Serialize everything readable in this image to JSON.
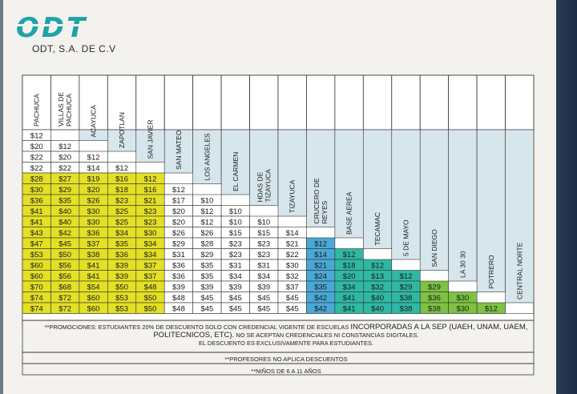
{
  "company": "ODT, S.A. DE C.V",
  "logo_text": "ODT",
  "colors": {
    "logo": "#1fa3a9",
    "yellow": "#e3e026",
    "blue": "#4aa8d6",
    "teal": "#2fb8a4",
    "green": "#7dc242",
    "white": "#ffffff",
    "header": "#d7e6ec"
  },
  "stops": [
    "PACHUCA",
    "VILLAS DE PACHUCA",
    "ACAYUCA",
    "ZAPOTLAN",
    "SAN JAVIER",
    "SAN MATEO",
    "LOS ANGELES",
    "EL CARMEN",
    "HDAS DE TIZAYUCA",
    "TIZAYUCA",
    "CRUCERO DE REYES",
    "BASE AEREA",
    "TECAMAC",
    "5 DE MAYO",
    "SAN DIEGO",
    "LA 30 30",
    "POTRERO",
    "CENTRAL NORTE"
  ],
  "fares": [
    [
      "$12"
    ],
    [
      "$20",
      "$12"
    ],
    [
      "$22",
      "$20",
      "$12"
    ],
    [
      "$22",
      "$22",
      "$14",
      "$12"
    ],
    [
      "$28",
      "$27",
      "$19",
      "$16",
      "$12"
    ],
    [
      "$30",
      "$29",
      "$20",
      "$18",
      "$16",
      "$12"
    ],
    [
      "$36",
      "$35",
      "$26",
      "$23",
      "$21",
      "$17",
      "$10"
    ],
    [
      "$41",
      "$40",
      "$30",
      "$25",
      "$23",
      "$20",
      "$12",
      "$10"
    ],
    [
      "$41",
      "$40",
      "$30",
      "$25",
      "$23",
      "$20",
      "$12",
      "$10",
      "$10"
    ],
    [
      "$43",
      "$42",
      "$36",
      "$34",
      "$30",
      "$26",
      "$26",
      "$15",
      "$15",
      "$14"
    ],
    [
      "$47",
      "$45",
      "$37",
      "$35",
      "$34",
      "$29",
      "$28",
      "$23",
      "$23",
      "$21",
      "$12"
    ],
    [
      "$53",
      "$50",
      "$38",
      "$36",
      "$34",
      "$31",
      "$29",
      "$23",
      "$23",
      "$22",
      "$14",
      "$12"
    ],
    [
      "$60",
      "$56",
      "$41",
      "$39",
      "$37",
      "$36",
      "$35",
      "$31",
      "$31",
      "$30",
      "$21",
      "$18",
      "$12"
    ],
    [
      "$60",
      "$56",
      "$41",
      "$39",
      "$37",
      "$36",
      "$35",
      "$34",
      "$34",
      "$32",
      "$24",
      "$20",
      "$13",
      "$12"
    ],
    [
      "$70",
      "$68",
      "$54",
      "$50",
      "$48",
      "$39",
      "$39",
      "$39",
      "$39",
      "$37",
      "$35",
      "$34",
      "$32",
      "$29",
      "$29"
    ],
    [
      "$74",
      "$72",
      "$60",
      "$53",
      "$50",
      "$48",
      "$45",
      "$45",
      "$45",
      "$45",
      "$42",
      "$41",
      "$40",
      "$38",
      "$36",
      "$30"
    ],
    [
      "$74",
      "$72",
      "$60",
      "$53",
      "$50",
      "$48",
      "$45",
      "$45",
      "$45",
      "$45",
      "$42",
      "$41",
      "$40",
      "$38",
      "$38",
      "$30",
      "$12"
    ]
  ],
  "notes": {
    "promo_lead": "**PROMOCIONES: ESTUDIANTES 20% DE DESCUENTO SOLO CON CREDENCIAL VIGENTE DE ESCUELAS",
    "promo_big": "INCORPORADAS A LA SEP (UAEH, UNAM, UAEM, POLITECNICOS, ETC).",
    "promo_mid": "NO SE ACEPTAN CREDENCIALES NI CONSTANCIAS DIGITALES.",
    "promo_end": "EL DESCUENTO ES EXCLUSIVAMENTE PARA ESTUDIANTES.",
    "teachers": "**PROFESORES NO APLICA DESCUENTOS",
    "children": "**NIÑOS DE 6 A 11 AÑOS"
  }
}
